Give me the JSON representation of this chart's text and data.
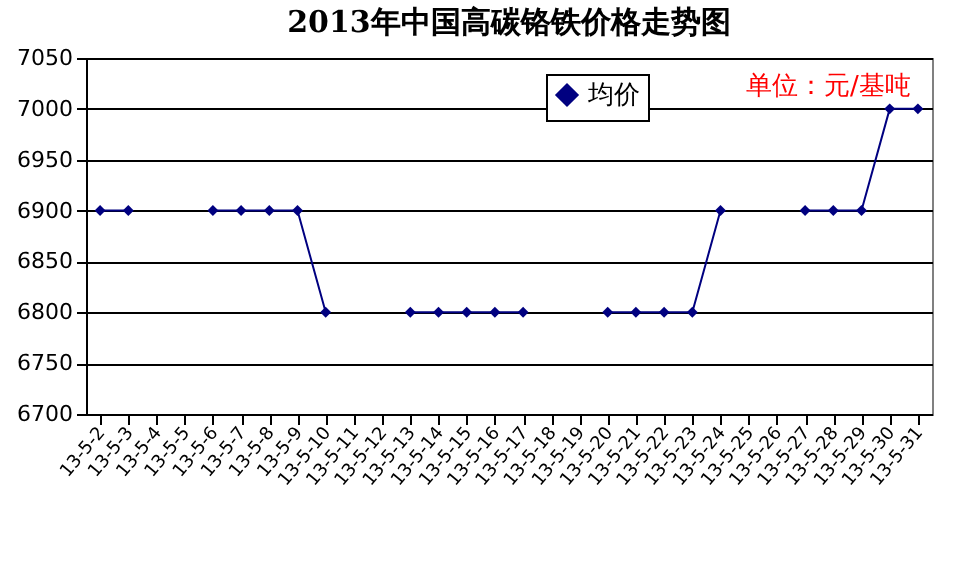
{
  "chart_data": {
    "type": "line",
    "title": "2013年中国高碳铬铁价格走势图",
    "annotations": [
      "单位：元/基吨"
    ],
    "categories": [
      "13-5-2",
      "13-5-3",
      "13-5-4",
      "13-5-5",
      "13-5-6",
      "13-5-7",
      "13-5-8",
      "13-5-9",
      "13-5-10",
      "13-5-11",
      "13-5-12",
      "13-5-13",
      "13-5-14",
      "13-5-15",
      "13-5-16",
      "13-5-17",
      "13-5-18",
      "13-5-19",
      "13-5-20",
      "13-5-21",
      "13-5-22",
      "13-5-23",
      "13-5-24",
      "13-5-25",
      "13-5-26",
      "13-5-27",
      "13-5-28",
      "13-5-29",
      "13-5-30",
      "13-5-31"
    ],
    "series": [
      {
        "name": "均价",
        "color": "#000080",
        "values": [
          6900,
          6900,
          null,
          null,
          6900,
          6900,
          6900,
          6900,
          6800,
          null,
          null,
          6800,
          6800,
          6800,
          6800,
          6800,
          null,
          null,
          6800,
          6800,
          6800,
          6800,
          6900,
          null,
          null,
          6900,
          6900,
          6900,
          7000,
          7000
        ]
      }
    ],
    "ylim": [
      6700,
      7050
    ],
    "yticks": [
      6700,
      6750,
      6800,
      6850,
      6900,
      6950,
      7000,
      7050
    ],
    "grid": "y",
    "legend": "top",
    "marker": "diamond",
    "line_style": "solid"
  }
}
